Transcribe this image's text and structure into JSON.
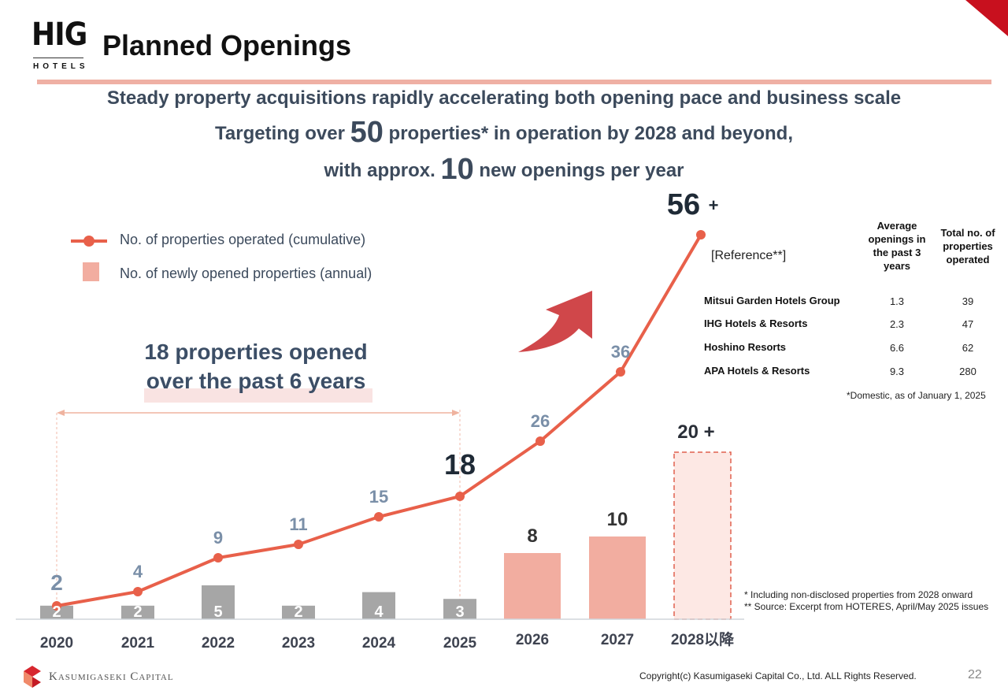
{
  "header": {
    "logo_mark": "HIG",
    "logo_sub": "HOTELS",
    "title": "Planned Openings"
  },
  "headline": {
    "line1": "Steady property acquisitions rapidly accelerating both opening pace and business scale",
    "line2_pre": "Targeting over ",
    "line2_big": "50",
    "line2_post": " properties* in operation by 2028 and beyond,",
    "line3_pre": "with approx. ",
    "line3_big": "10",
    "line3_post": " new openings per year"
  },
  "callout": {
    "line1": "18 properties opened",
    "line2": "over the past 6 years"
  },
  "chart_data": {
    "type": "bar+line",
    "categories": [
      "2020",
      "2021",
      "2022",
      "2023",
      "2024",
      "2025",
      "2026",
      "2027",
      "2028以降"
    ],
    "series": [
      {
        "name": "No. of properties operated (cumulative)",
        "type": "line",
        "color": "#e8604a",
        "values": [
          2,
          4,
          9,
          11,
          15,
          18,
          26,
          36,
          56
        ],
        "labels": [
          "2",
          "4",
          "9",
          "11",
          "15",
          "18",
          "26",
          "36",
          "56 +"
        ]
      },
      {
        "name": "No. of newly opened properties (annual)",
        "type": "bar",
        "values": [
          2,
          2,
          5,
          2,
          4,
          3,
          8,
          10,
          20
        ],
        "labels": [
          "2",
          "2",
          "5",
          "2",
          "4",
          "3",
          "8",
          "10",
          "20 +"
        ],
        "colors": {
          "actual": "#a6a6a6",
          "planned": "#f2ada0",
          "target": "#fde8e4"
        }
      }
    ],
    "legend": "top-left",
    "grid": false
  },
  "reference": {
    "title": "[Reference**]",
    "columns": [
      "Average openings in the past 3 years",
      "Total no. of properties operated"
    ],
    "rows": [
      {
        "name": "Mitsui Garden Hotels Group",
        "avg": "1.3",
        "total": "39"
      },
      {
        "name": "IHG Hotels & Resorts",
        "avg": "2.3",
        "total": "47"
      },
      {
        "name": "Hoshino Resorts",
        "avg": "6.6",
        "total": "62"
      },
      {
        "name": "APA Hotels & Resorts",
        "avg": "9.3",
        "total": "280"
      }
    ],
    "note": "*Domestic, as of January 1, 2025"
  },
  "footnotes": {
    "f1": "* Including non-disclosed properties from 2028 onward",
    "f2": "** Source: Excerpt from HOTERES, April/May 2025 issues"
  },
  "footer": {
    "brand": "Kasumigaseki Capital",
    "copyright": "Copyright(c) Kasumigaseki Capital Co., Ltd. ALL Rights Reserved.",
    "page": "22"
  }
}
